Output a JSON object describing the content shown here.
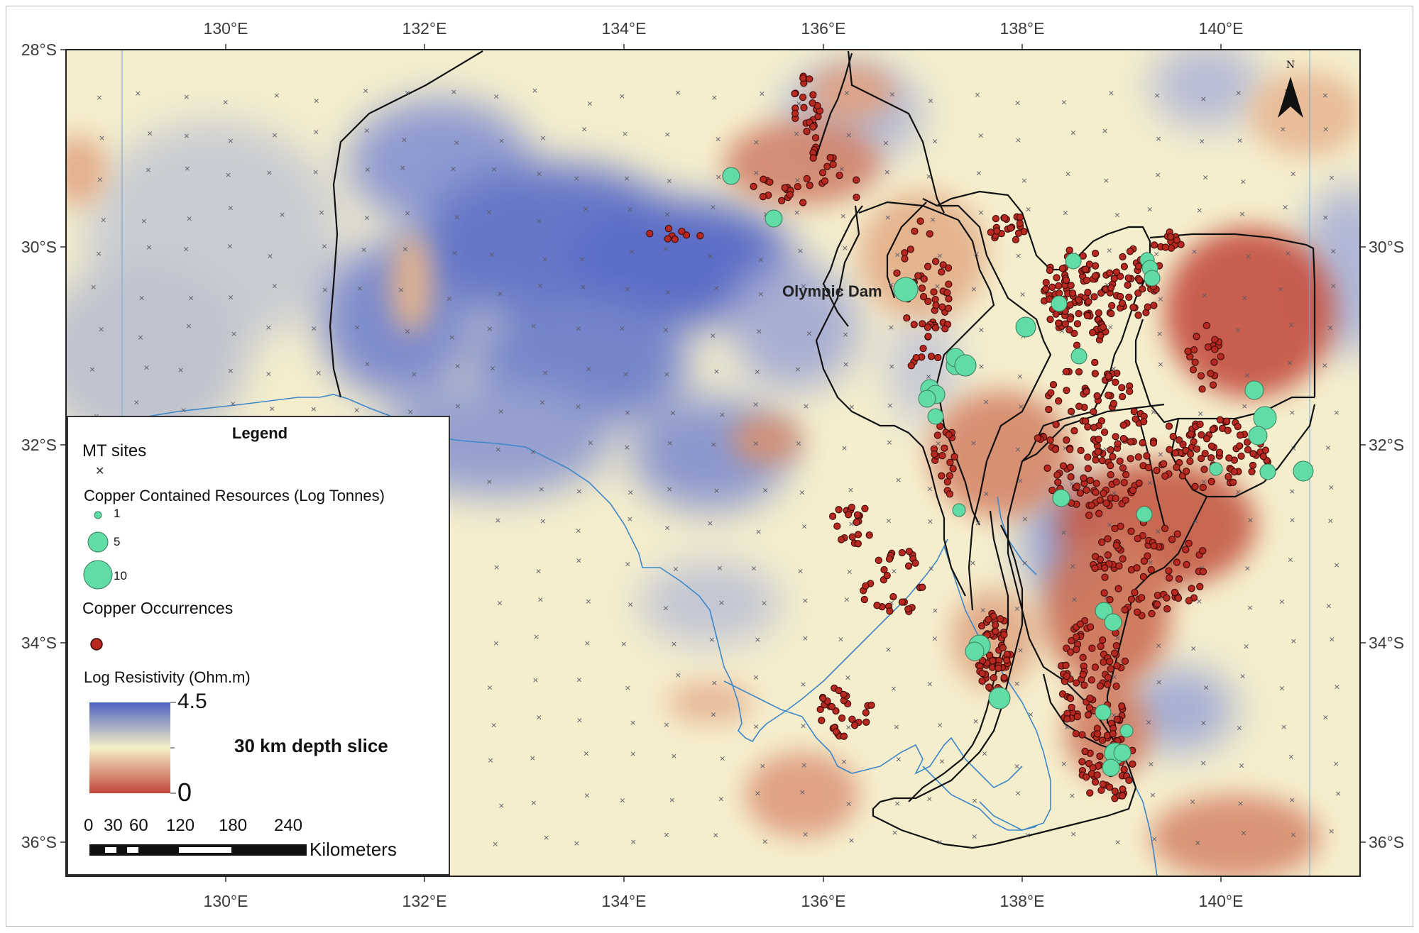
{
  "map": {
    "longitude_labels": [
      "130°E",
      "132°E",
      "134°E",
      "136°E",
      "138°E",
      "140°E"
    ],
    "latitude_labels": [
      "28°S",
      "30°S",
      "32°S",
      "34°S",
      "36°S"
    ],
    "place_label": "Olympic Dam",
    "north_arrow_label": "N",
    "colors": {
      "high_resistivity": "#4d62c2",
      "mid_resistivity": "#f6f1c6",
      "low_resistivity": "#c0473a",
      "copper_occurrence": "#b62820",
      "copper_resource": "#62dca7",
      "coastline": "#3d87c8",
      "boundary": "#111111"
    }
  },
  "legend": {
    "title": "Legend",
    "mt_sites_label": "MT sites",
    "resources_label": "Copper Contained Resources (Log Tonnes)",
    "resource_sizes": [
      "1",
      "5",
      "10"
    ],
    "occurrences_label": "Copper Occurrences",
    "resistivity_label": "Log Resistivity (Ohm.m)",
    "resistivity_max": "4.5",
    "resistivity_min": "0",
    "depth_slice_label": "30 km depth slice",
    "scale_ticks": [
      "0",
      "30",
      "60",
      "120",
      "180",
      "240"
    ],
    "scale_unit": "Kilometers"
  }
}
